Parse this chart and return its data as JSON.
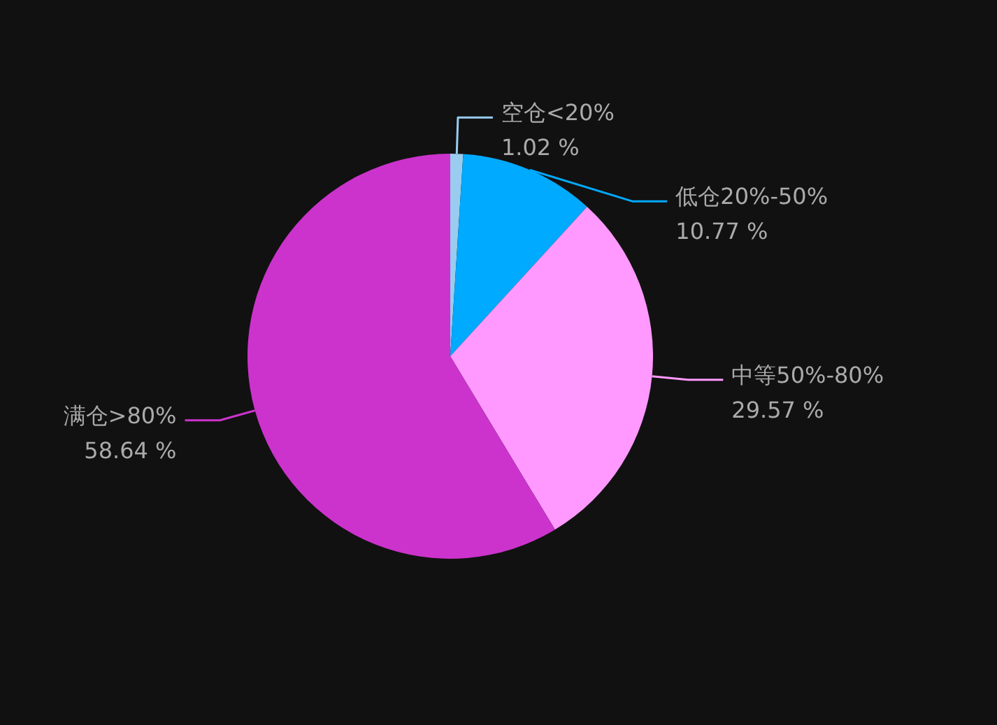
{
  "chart_data": {
    "type": "pie",
    "categories": [
      "空仓<20%",
      "低仓20%-50%",
      "中等50%-80%",
      "满仓>80%"
    ],
    "values": [
      1.02,
      10.77,
      29.57,
      58.64
    ],
    "colors": [
      "#99ccee",
      "#00aaff",
      "#ff99ff",
      "#cc33cc"
    ],
    "value_labels": [
      "1.02 %",
      "10.77 %",
      "29.57 %",
      "58.64 %"
    ]
  }
}
